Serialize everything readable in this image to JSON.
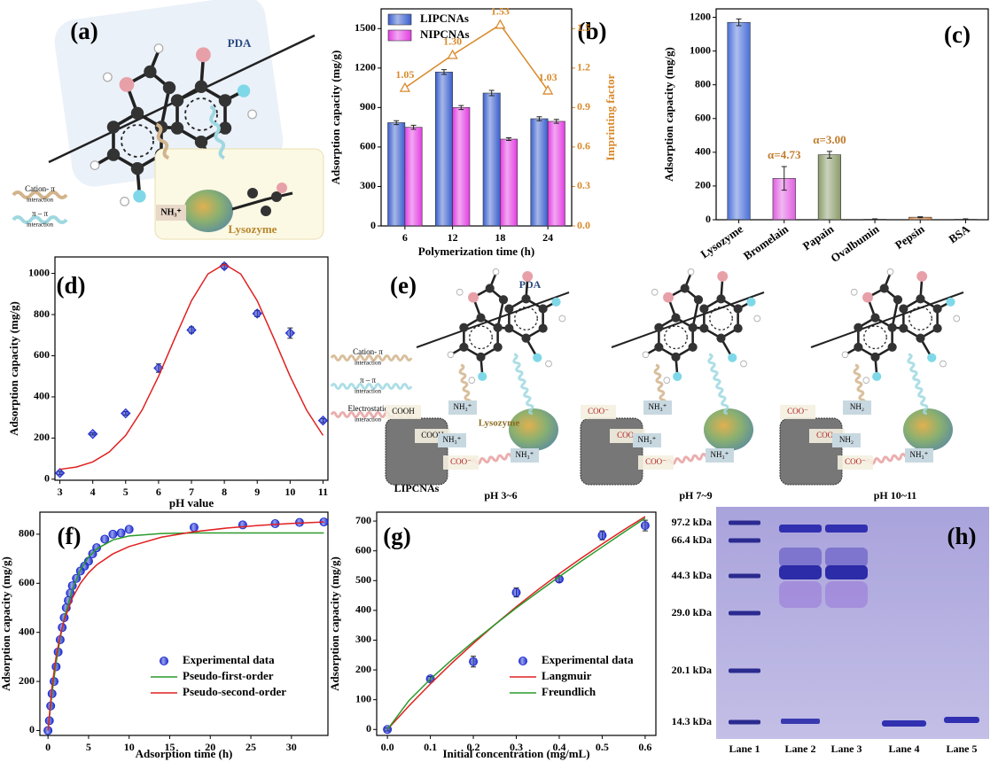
{
  "chart_data": [
    {
      "type": "bar",
      "label": "(b)",
      "categories": [
        "6",
        "12",
        "18",
        "24"
      ],
      "series": [
        {
          "name": "LIPCNAs",
          "color": "#3a5fcd",
          "values": [
            785,
            1170,
            1010,
            815
          ],
          "errors": [
            15,
            18,
            20,
            15
          ]
        },
        {
          "name": "NIPCNAs",
          "color": "#e23de2",
          "values": [
            750,
            900,
            660,
            795
          ],
          "errors": [
            15,
            15,
            10,
            15
          ]
        },
        {
          "type": "line",
          "axis": "y2",
          "color": "#d98a2b",
          "values": [
            1.05,
            1.3,
            1.53,
            1.03
          ],
          "value_labels": [
            "1.05",
            "1.30",
            "1.53",
            "1.03"
          ]
        }
      ],
      "xlabel": "Polymerization time (h)",
      "ylabel": "Adsorption capacity (mg/g)",
      "y2label": "Imprinting factor",
      "ylim": [
        0,
        1650
      ],
      "yticks": [
        0,
        300,
        600,
        900,
        1200,
        1500
      ],
      "y2lim": [
        0,
        1.65
      ],
      "y2ticks": [
        {
          "value": 0,
          "label": "0.0"
        },
        0.3,
        0.6,
        0.9,
        1.2,
        1.5
      ],
      "legend": "upper left"
    },
    {
      "type": "bar",
      "label": "(c)",
      "categories": [
        "Lysozyme",
        "Bromelain",
        "Papain",
        "Ovalbumin",
        "Pepsin",
        "BSA"
      ],
      "values": [
        1170,
        245,
        385,
        3,
        15,
        3
      ],
      "errors": [
        20,
        70,
        20,
        2,
        3,
        2
      ],
      "colors": [
        "#4a6fd8",
        "#e060e0",
        "#8a9a6a",
        "#7d7da8",
        "#e0884a",
        "#6060a0"
      ],
      "annotations": [
        {
          "text": "α=4.73",
          "x": "Bromelain"
        },
        {
          "text": "α=3.00",
          "x": "Papain"
        }
      ],
      "annotation_color": "#c07a2a",
      "ylabel": "Adsorption capacity (mg/g)",
      "ylim": [
        0,
        1250
      ],
      "yticks": [
        0,
        200,
        400,
        600,
        800,
        1000,
        1200
      ]
    },
    {
      "type": "scatter",
      "label": "(d)",
      "xlabel": "pH value",
      "ylabel": "Adsorption capacity (mg/g)",
      "xlim": [
        2.85,
        11.15
      ],
      "xticks": [
        3,
        4,
        5,
        6,
        7,
        8,
        9,
        10,
        11
      ],
      "ylim": [
        -5,
        1080
      ],
      "yticks": [
        0,
        200,
        400,
        600,
        800,
        1000
      ],
      "series": [
        {
          "type": "scatter",
          "marker": "diamond",
          "color": "#1f2fd0",
          "x": [
            3,
            4,
            5,
            6,
            7,
            8,
            9,
            10,
            11
          ],
          "values": [
            30,
            220,
            320,
            540,
            725,
            1035,
            805,
            710,
            285
          ],
          "errors": [
            8,
            5,
            8,
            20,
            15,
            12,
            15,
            25,
            10
          ]
        },
        {
          "type": "line",
          "color": "#e02020",
          "x": [
            3,
            3.5,
            4,
            4.5,
            5,
            5.5,
            6,
            6.5,
            7,
            7.5,
            8,
            8.5,
            9,
            9.5,
            10,
            10.5,
            11
          ],
          "values": [
            48,
            59,
            84,
            132,
            213,
            336,
            500,
            687,
            867,
            997,
            1045,
            997,
            867,
            687,
            500,
            336,
            213
          ]
        }
      ]
    },
    {
      "type": "scatter",
      "label": "(f)",
      "xlabel": "Adsorption time (h)",
      "ylabel": "Adsorption capacity (mg/g)",
      "xlim": [
        -1,
        34.5
      ],
      "xticks": [
        0,
        5,
        10,
        15,
        20,
        25,
        30
      ],
      "ylim": [
        -20,
        890
      ],
      "yticks": [
        0,
        200,
        400,
        600,
        800
      ],
      "legend": "lower right",
      "series": [
        {
          "name": "Experimental data",
          "type": "scatter",
          "marker": "circle",
          "color": "#1f2fd0",
          "x": [
            0,
            0.17,
            0.33,
            0.5,
            0.75,
            1,
            1.25,
            1.5,
            1.75,
            2,
            2.25,
            2.5,
            2.75,
            3,
            3.5,
            4,
            4.5,
            5,
            5.5,
            6,
            7,
            8,
            9,
            10,
            18,
            24,
            28,
            31,
            34
          ],
          "values": [
            0,
            40,
            100,
            150,
            200,
            260,
            320,
            370,
            420,
            460,
            500,
            530,
            560,
            590,
            620,
            650,
            670,
            690,
            720,
            745,
            780,
            800,
            805,
            820,
            828,
            838,
            843,
            848,
            850
          ]
        },
        {
          "name": "Pseudo-first-order",
          "type": "line",
          "color": "#2a9a2a",
          "x": [
            0,
            0.5,
            1,
            1.5,
            2,
            3,
            4,
            5,
            6,
            8,
            10,
            14,
            18,
            22,
            26,
            30,
            34
          ],
          "values": [
            0,
            152,
            276,
            376,
            457,
            576,
            655,
            707,
            740,
            777,
            793,
            803,
            805,
            805,
            805,
            805,
            805
          ]
        },
        {
          "name": "Pseudo-second-order",
          "type": "line",
          "color": "#e02020",
          "x": [
            0,
            0.5,
            1,
            1.5,
            2,
            3,
            4,
            5,
            6,
            8,
            10,
            14,
            18,
            22,
            26,
            30,
            34
          ],
          "values": [
            0,
            180,
            300,
            386,
            450,
            540,
            600,
            643,
            675,
            720,
            750,
            788,
            810,
            825,
            836,
            844,
            850
          ]
        }
      ]
    },
    {
      "type": "scatter",
      "label": "(g)",
      "xlabel": "Initial concentration (mg/mL)",
      "ylabel": "Adsorption capacity (mg/g)",
      "xlim": [
        -0.025,
        0.625
      ],
      "xticks": [
        {
          "value": 0,
          "label": "0.0"
        },
        0.1,
        0.2,
        0.3,
        0.4,
        0.5,
        0.6
      ],
      "ylim": [
        -20,
        730
      ],
      "yticks": [
        0,
        100,
        200,
        300,
        400,
        500,
        600,
        700
      ],
      "legend": "lower right",
      "series": [
        {
          "name": "Experimental data",
          "type": "scatter",
          "marker": "circle",
          "color": "#1f2fd0",
          "x": [
            0,
            0.1,
            0.2,
            0.3,
            0.4,
            0.5,
            0.6
          ],
          "values": [
            0,
            170,
            228,
            460,
            505,
            652,
            685
          ],
          "errors": [
            5,
            8,
            18,
            15,
            10,
            15,
            18
          ]
        },
        {
          "name": "Langmuir",
          "type": "line",
          "color": "#e02020",
          "x": [
            0,
            0.05,
            0.1,
            0.15,
            0.2,
            0.25,
            0.3,
            0.35,
            0.4,
            0.45,
            0.5,
            0.55,
            0.6
          ],
          "values": [
            0,
            79,
            153,
            223,
            289,
            352,
            412,
            469,
            523,
            574,
            623,
            670,
            715
          ]
        },
        {
          "name": "Freundlich",
          "type": "line",
          "color": "#2a9a2a",
          "x": [
            0,
            0.05,
            0.1,
            0.15,
            0.2,
            0.25,
            0.3,
            0.35,
            0.4,
            0.45,
            0.5,
            0.55,
            0.6
          ],
          "values": [
            0,
            97,
            169,
            234,
            295,
            352,
            408,
            461,
            513,
            564,
            613,
            662,
            710
          ]
        }
      ]
    }
  ],
  "diagram_a": {
    "label": "(a)",
    "pda": "PDA",
    "legend": [
      "Cation- π",
      "interaction",
      "π – π",
      "interaction"
    ],
    "amine": "NH₃⁺",
    "protein": "Lysozyme"
  },
  "diagram_e": {
    "label": "(e)",
    "pda": "PDA",
    "legend": [
      "Cation- π",
      "interaction",
      "π – π",
      "interaction",
      "Electrostatic",
      "interaction"
    ],
    "material": "LIPCNAs",
    "protein": "Lysozyme",
    "panels": [
      {
        "ph": "pH 3~6",
        "groups": [
          "COOH",
          "COOH",
          "COO⁻"
        ],
        "amines": [
          "NH₃⁺",
          "NH₃⁺",
          "NH₃⁺"
        ]
      },
      {
        "ph": "pH 7~9",
        "groups": [
          "COO⁻",
          "COO⁻",
          "COO⁻"
        ],
        "amines": [
          "NH₃⁺",
          "NH₃⁺",
          "NH₃⁺"
        ]
      },
      {
        "ph": "pH 10~11",
        "groups": [
          "COO⁻",
          "COO⁻",
          "COO⁻"
        ],
        "amines": [
          "NH₂",
          "NH₂",
          "NH₃⁺"
        ]
      }
    ]
  },
  "gel": {
    "label": "(h)",
    "markers": [
      "97.2 kDa",
      "66.4 kDa",
      "44.3 kDa",
      "29.0 kDa",
      "20.1 kDa",
      "14.3 kDa"
    ],
    "lanes": [
      "Lane 1",
      "Lane 2",
      "Lane 3",
      "Lane 4",
      "Lane 5"
    ]
  }
}
